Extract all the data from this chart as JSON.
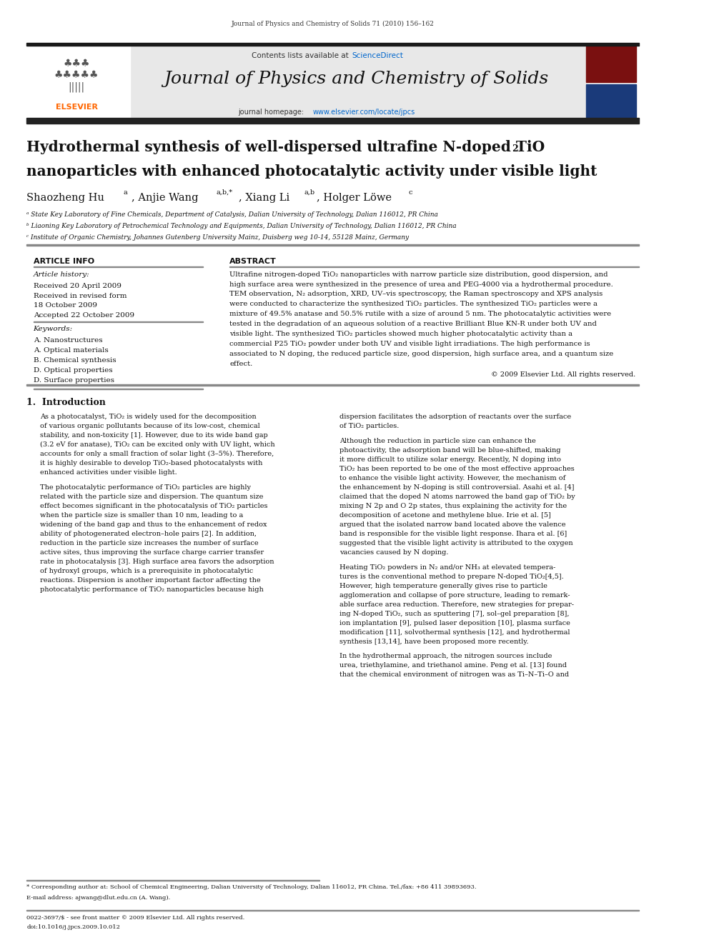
{
  "page_width": 9.92,
  "page_height": 13.23,
  "bg_color": "#ffffff",
  "journal_ref": "Journal of Physics and Chemistry of Solids 71 (2010) 156–162",
  "header_bg": "#e8e8e8",
  "journal_title": "Journal of Physics and Chemistry of Solids",
  "article_info_title": "ARTICLE INFO",
  "abstract_title": "ABSTRACT",
  "article_history_label": "Article history:",
  "received_1": "Received 20 April 2009",
  "received_revised": "Received in revised form",
  "date_revised": "18 October 2009",
  "accepted": "Accepted 22 October 2009",
  "keywords_label": "Keywords:",
  "kw1": "A. Nanostructures",
  "kw2": "A. Optical materials",
  "kw3": "B. Chemical synthesis",
  "kw4": "D. Optical properties",
  "kw5": "D. Surface properties",
  "copyright": "© 2009 Elsevier Ltd. All rights reserved.",
  "section1_title": "1.  Introduction",
  "affil_a": "ᵃ State Key Laboratory of Fine Chemicals, Department of Catalysis, Dalian University of Technology, Dalian 116012, PR China",
  "affil_b": "ᵇ Liaoning Key Laboratory of Petrochemical Technology and Equipments, Dalian University of Technology, Dalian 116012, PR China",
  "affil_c": "ᶜ Institute of Organic Chemistry, Johannes Gutenberg University Mainz, Duisberg weg 10-14, 55128 Mainz, Germany",
  "footnote_star": "* Corresponding author at: School of Chemical Engineering, Dalian University of Technology, Dalian 116012, PR China. Tel./fax: +86 411 39893693.",
  "footnote_email": "E-mail address: ajwang@dlut.edu.cn (A. Wang).",
  "footer_issn": "0022-3697/$ - see front matter © 2009 Elsevier Ltd. All rights reserved.",
  "footer_doi": "doi:10.1016/j.jpcs.2009.10.012",
  "black_bar_color": "#1a1a1a",
  "blue_link_color": "#0066cc",
  "dark_bar_color": "#222222",
  "abstract_lines": [
    "Ultrafine nitrogen-doped TiO₂ nanoparticles with narrow particle size distribution, good dispersion, and",
    "high surface area were synthesized in the presence of urea and PEG-4000 via a hydrothermal procedure.",
    "TEM observation, N₂ adsorption, XRD, UV–vis spectroscopy, the Raman spectroscopy and XPS analysis",
    "were conducted to characterize the synthesized TiO₂ particles. The synthesized TiO₂ particles were a",
    "mixture of 49.5% anatase and 50.5% rutile with a size of around 5 nm. The photocatalytic activities were",
    "tested in the degradation of an aqueous solution of a reactive Brilliant Blue KN-R under both UV and",
    "visible light. The synthesized TiO₂ particles showed much higher photocatalytic activity than a",
    "commercial P25 TiO₂ powder under both UV and visible light irradiations. The high performance is",
    "associated to N doping, the reduced particle size, good dispersion, high surface area, and a quantum size",
    "effect."
  ],
  "intro_c1_p1": [
    "As a photocatalyst, TiO₂ is widely used for the decomposition",
    "of various organic pollutants because of its low-cost, chemical",
    "stability, and non-toxicity [1]. However, due to its wide band gap",
    "(3.2 eV for anatase), TiO₂ can be excited only with UV light, which",
    "accounts for only a small fraction of solar light (3–5%). Therefore,",
    "it is highly desirable to develop TiO₂-based photocatalysts with",
    "enhanced activities under visible light."
  ],
  "intro_c1_p2": [
    "The photocatalytic performance of TiO₂ particles are highly",
    "related with the particle size and dispersion. The quantum size",
    "effect becomes significant in the photocatalysis of TiO₂ particles",
    "when the particle size is smaller than 10 nm, leading to a",
    "widening of the band gap and thus to the enhancement of redox",
    "ability of photogenerated electron–hole pairs [2]. In addition,",
    "reduction in the particle size increases the number of surface",
    "active sites, thus improving the surface charge carrier transfer",
    "rate in photocatalysis [3]. High surface area favors the adsorption",
    "of hydroxyl groups, which is a prerequisite in photocatalytic",
    "reactions. Dispersion is another important factor affecting the",
    "photocatalytic performance of TiO₂ nanoparticles because high"
  ],
  "intro_c2_p1": [
    "dispersion facilitates the adsorption of reactants over the surface",
    "of TiO₂ particles."
  ],
  "intro_c2_p2": [
    "Although the reduction in particle size can enhance the",
    "photoactivity, the adsorption band will be blue-shifted, making",
    "it more difficult to utilize solar energy. Recently, N doping into",
    "TiO₂ has been reported to be one of the most effective approaches",
    "to enhance the visible light activity. However, the mechanism of",
    "the enhancement by N-doping is still controversial. Asahi et al. [4]",
    "claimed that the doped N atoms narrowed the band gap of TiO₂ by",
    "mixing N 2p and O 2p states, thus explaining the activity for the",
    "decomposition of acetone and methylene blue. Irie et al. [5]",
    "argued that the isolated narrow band located above the valence",
    "band is responsible for the visible light response. Ihara et al. [6]",
    "suggested that the visible light activity is attributed to the oxygen",
    "vacancies caused by N doping."
  ],
  "intro_c2_p3": [
    "Heating TiO₂ powders in N₂ and/or NH₃ at elevated tempera-",
    "tures is the conventional method to prepare N-doped TiO₂[4,5].",
    "However, high temperature generally gives rise to particle",
    "agglomeration and collapse of pore structure, leading to remark-",
    "able surface area reduction. Therefore, new strategies for prepar-",
    "ing N-doped TiO₂, such as sputtering [7], sol–gel preparation [8],",
    "ion implantation [9], pulsed laser deposition [10], plasma surface",
    "modification [11], solvothermal synthesis [12], and hydrothermal",
    "synthesis [13,14], have been proposed more recently."
  ],
  "intro_c2_p4": [
    "In the hydrothermal approach, the nitrogen sources include",
    "urea, triethylamine, and triethanol amine. Peng et al. [13] found",
    "that the chemical environment of nitrogen was as Ti–N–Ti–O and"
  ]
}
